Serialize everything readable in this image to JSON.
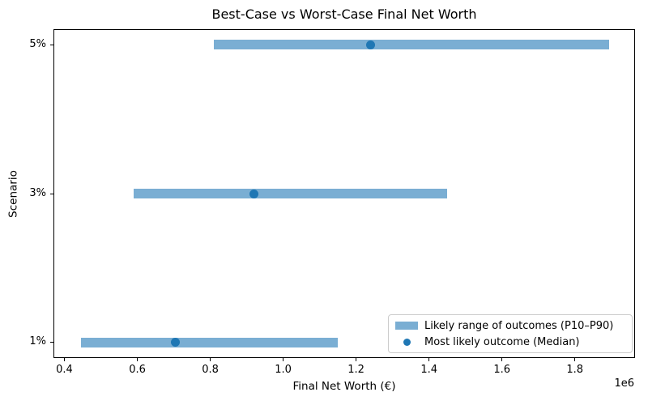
{
  "chart_data": {
    "type": "bar",
    "orientation": "horizontal",
    "title": "Best-Case vs Worst-Case Final Net Worth",
    "xlabel": "Final Net Worth (€)",
    "ylabel": "Scenario",
    "axis_offset_label": "1e6",
    "categories": [
      "5%",
      "3%",
      "1%"
    ],
    "series": [
      {
        "name": "Likely range of outcomes (P10–P90)",
        "type": "range_bar",
        "p10": [
          810000,
          590000,
          445000
        ],
        "p90": [
          1895000,
          1450000,
          1150000
        ]
      },
      {
        "name": "Most likely outcome (Median)",
        "type": "scatter",
        "values": [
          1240000,
          920000,
          705000
        ]
      }
    ],
    "xlim": [
      370000,
      1965000
    ],
    "xticks": [
      400000,
      600000,
      800000,
      1000000,
      1200000,
      1400000,
      1600000,
      1800000
    ],
    "xtick_labels": [
      "0.4",
      "0.6",
      "0.8",
      "1.0",
      "1.2",
      "1.4",
      "1.6",
      "1.8"
    ],
    "grid": false,
    "legend_position": "lower right",
    "colors": {
      "range_bar": "#7aaed3",
      "median_dot": "#1f77b4",
      "spine": "#000000",
      "text": "#000000",
      "legend_border": "#cccccc"
    }
  }
}
